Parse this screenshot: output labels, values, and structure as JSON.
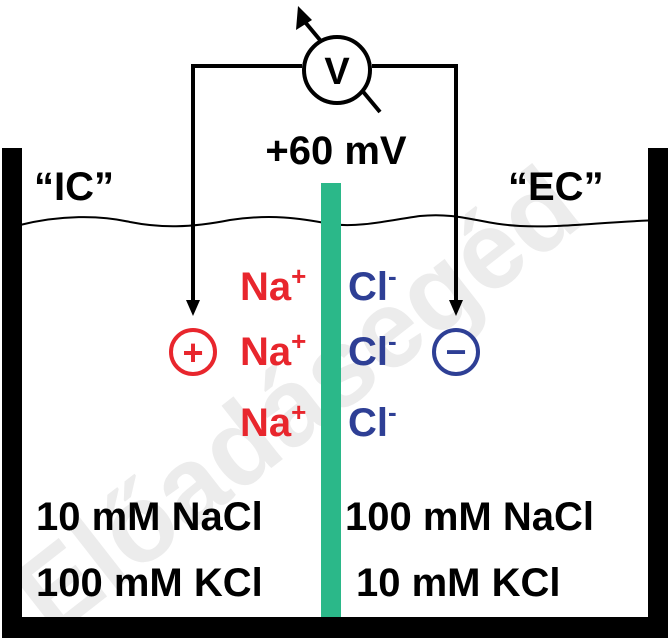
{
  "voltmeter": {
    "symbol": "V"
  },
  "reading": "+60 mV",
  "compartments": {
    "left": {
      "name": "“IC”",
      "solution": [
        "10 mM NaCl",
        "100 mM KCl"
      ]
    },
    "right": {
      "name": "“EC”",
      "solution": [
        "100 mM NaCl",
        "10 mM KCl"
      ]
    }
  },
  "ions": {
    "cation": {
      "base": "Na",
      "charge": "+"
    },
    "anion": {
      "base": "Cl",
      "charge": "-"
    }
  },
  "electrodes": {
    "positive": "+",
    "negative": "−"
  },
  "watermark": "Előadásegéd",
  "colors": {
    "cation": "#e8262d",
    "anion": "#2e3f95",
    "membrane": "#2bb889",
    "line": "#000000"
  }
}
